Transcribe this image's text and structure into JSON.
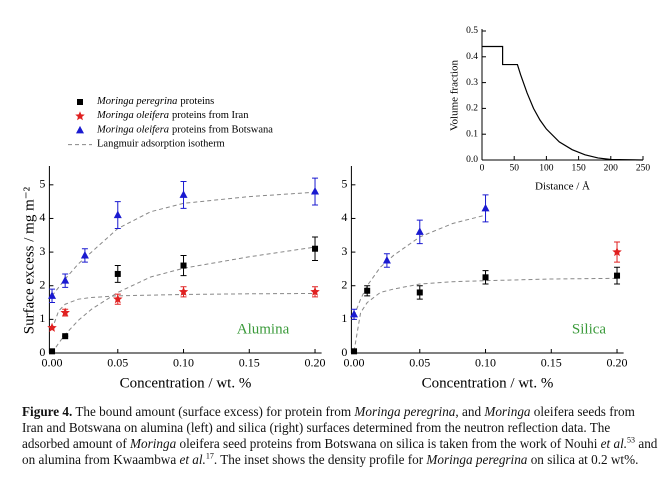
{
  "chart_data": [
    {
      "type": "scatter",
      "ylabel": "Surface excess / mg m⁻²",
      "xlabel": "Concentration / wt. %",
      "annotation": "Alumina",
      "annotation_color": "#3a9a3a",
      "xlim": [
        -0.002,
        0.205
      ],
      "ylim": [
        0,
        5.5
      ],
      "xticks": [
        {
          "value": 0,
          "label": "0.00"
        },
        {
          "value": 0.05,
          "label": "0.05"
        },
        {
          "value": 0.1,
          "label": "0.10"
        },
        {
          "value": 0.15,
          "label": "0.15"
        },
        {
          "value": 0.2,
          "label": "0.20"
        }
      ],
      "yticks": [
        0,
        1,
        2,
        3,
        4,
        5
      ],
      "series": [
        {
          "marker": "square",
          "color": "#000000",
          "x": [
            0,
            0.01,
            0.05,
            0.1,
            0.2
          ],
          "values": [
            0.05,
            0.5,
            2.35,
            2.6,
            3.1
          ],
          "errors": [
            0,
            0,
            0.25,
            0.3,
            0.35
          ]
        },
        {
          "marker": "star",
          "color": "#e02020",
          "x": [
            0,
            0.01,
            0.05,
            0.1,
            0.2
          ],
          "values": [
            0.75,
            1.2,
            1.6,
            1.82,
            1.82
          ],
          "errors": [
            0,
            0.1,
            0.15,
            0.15,
            0.15
          ]
        },
        {
          "marker": "triangle",
          "color": "#1a1ad0",
          "x": [
            0,
            0.01,
            0.025,
            0.05,
            0.1,
            0.2
          ],
          "values": [
            1.7,
            2.15,
            2.9,
            4.1,
            4.7,
            4.8
          ],
          "errors": [
            0.2,
            0.2,
            0.2,
            0.4,
            0.4,
            0.4
          ]
        }
      ],
      "fits": [
        {
          "color": "#888888",
          "x": [
            0,
            0.005,
            0.01,
            0.02,
            0.03,
            0.05,
            0.075,
            0.1,
            0.15,
            0.2
          ],
          "values": [
            0,
            0.29,
            0.55,
            0.97,
            1.3,
            1.8,
            2.26,
            2.52,
            2.86,
            3.15
          ]
        },
        {
          "color": "#888888",
          "x": [
            0,
            0.005,
            0.01,
            0.02,
            0.03,
            0.05,
            0.075,
            0.1,
            0.15,
            0.2
          ],
          "values": [
            0.7,
            1.25,
            1.45,
            1.6,
            1.65,
            1.7,
            1.72,
            1.74,
            1.76,
            1.77
          ]
        },
        {
          "color": "#888888",
          "x": [
            0,
            0.005,
            0.01,
            0.02,
            0.03,
            0.05,
            0.075,
            0.1,
            0.15,
            0.2
          ],
          "values": [
            1.7,
            1.95,
            2.2,
            2.65,
            3.0,
            3.7,
            4.2,
            4.45,
            4.65,
            4.78
          ]
        }
      ],
      "legend": [
        {
          "italic": "Moringa peregrina",
          "text": "proteins",
          "marker": "square",
          "color": "#000000"
        },
        {
          "italic": "Moringa oleifera",
          "text": "proteins from Iran",
          "marker": "star",
          "color": "#e02020"
        },
        {
          "italic": "Moringa oleifera",
          "text": "proteins from Botswana",
          "marker": "triangle",
          "color": "#1a1ad0"
        },
        {
          "text": "Langmuir adsorption isotherm",
          "line": "dashed",
          "color": "#888888"
        }
      ]
    },
    {
      "type": "scatter",
      "xlabel": "Concentration / wt. %",
      "annotation": "Silica",
      "annotation_color": "#3a9a3a",
      "xlim": [
        -0.002,
        0.205
      ],
      "ylim": [
        0,
        5.5
      ],
      "xticks": [
        {
          "value": 0,
          "label": "0.00"
        },
        {
          "value": 0.05,
          "label": "0.05"
        },
        {
          "value": 0.1,
          "label": "0.10"
        },
        {
          "value": 0.15,
          "label": "0.15"
        },
        {
          "value": 0.2,
          "label": "0.20"
        }
      ],
      "yticks": [
        0,
        1,
        2,
        3,
        4,
        5
      ],
      "series": [
        {
          "marker": "square",
          "color": "#000000",
          "x": [
            0,
            0.01,
            0.05,
            0.1,
            0.2
          ],
          "values": [
            0.05,
            1.85,
            1.8,
            2.25,
            2.3
          ],
          "errors": [
            0,
            0.15,
            0.2,
            0.2,
            0.25
          ]
        },
        {
          "marker": "star",
          "color": "#e02020",
          "x": [
            0.2
          ],
          "values": [
            3.0
          ],
          "errors": [
            0.3
          ]
        },
        {
          "marker": "triangle",
          "color": "#1a1ad0",
          "x": [
            0,
            0.025,
            0.05,
            0.1
          ],
          "values": [
            1.15,
            2.75,
            3.6,
            4.3
          ],
          "errors": [
            0.15,
            0.2,
            0.35,
            0.4
          ]
        }
      ],
      "fits": [
        {
          "color": "#888888",
          "x": [
            0,
            0.005,
            0.01,
            0.02,
            0.03,
            0.05,
            0.075,
            0.1,
            0.15,
            0.2
          ],
          "values": [
            0.05,
            1.2,
            1.5,
            1.8,
            1.9,
            2.05,
            2.12,
            2.15,
            2.2,
            2.22
          ]
        },
        {
          "color": "#888888",
          "x": [
            0,
            0.005,
            0.01,
            0.02,
            0.03,
            0.05,
            0.075,
            0.1
          ],
          "values": [
            1.1,
            1.6,
            2.0,
            2.55,
            2.9,
            3.45,
            3.85,
            4.1
          ]
        }
      ]
    },
    {
      "type": "line",
      "xlabel": "Distance / Å",
      "ylabel": "Volume fraction",
      "xlim": [
        0,
        250
      ],
      "ylim": [
        0,
        0.5
      ],
      "xticks": [
        0,
        50,
        100,
        150,
        200,
        250
      ],
      "yticks": [
        {
          "value": 0,
          "label": "0.0"
        },
        {
          "value": 0.1,
          "label": "0.1"
        },
        {
          "value": 0.2,
          "label": "0.2"
        },
        {
          "value": 0.3,
          "label": "0.3"
        },
        {
          "value": 0.4,
          "label": "0.4"
        },
        {
          "value": 0.5,
          "label": "0.5"
        }
      ],
      "series": [
        {
          "color": "#000000",
          "x": [
            0,
            32,
            32,
            55,
            60,
            70,
            80,
            90,
            100,
            120,
            140,
            160,
            180,
            200,
            250
          ],
          "values": [
            0.44,
            0.44,
            0.37,
            0.37,
            0.33,
            0.26,
            0.2,
            0.155,
            0.12,
            0.07,
            0.04,
            0.02,
            0.008,
            0.002,
            0
          ]
        }
      ]
    }
  ],
  "caption": [
    {
      "text": "Figure 4.",
      "style": "bold"
    },
    {
      "text": "  The bound amount (surface excess) for protein from "
    },
    {
      "text": "Moringa peregrina",
      "style": "italic"
    },
    {
      "text": ", and "
    },
    {
      "text": "Moringa",
      "style": "italic"
    },
    {
      "text": " oleifera seeds from Iran and Botswana on alumina (left) and silica (right) surfaces determined from the neutron reflection data. The adsorbed amount of "
    },
    {
      "text": "Moringa",
      "style": "italic"
    },
    {
      "text": " oleifera seed proteins from Botswana on silica is taken from the work of Nouhi "
    },
    {
      "text": "et al.",
      "style": "italic"
    },
    {
      "text": "53",
      "style": "sup"
    },
    {
      "text": " and on alumina from Kwaambwa "
    },
    {
      "text": "et al.",
      "style": "italic"
    },
    {
      "text": "17",
      "style": "sup"
    },
    {
      "text": ". The inset shows the density profile for "
    },
    {
      "text": "Moringa peregrina",
      "style": "italic"
    },
    {
      "text": " on silica at 0.2 wt%."
    }
  ]
}
